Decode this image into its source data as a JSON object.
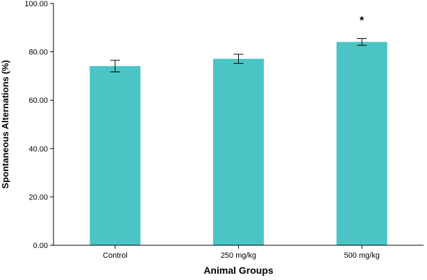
{
  "chart_data": {
    "type": "bar",
    "categories": [
      "Control",
      "250 mg/kg",
      "500 mg/kg"
    ],
    "series": [
      {
        "values": [
          74.1,
          77.1,
          84.1
        ],
        "error": [
          2.4,
          1.9,
          1.4
        ],
        "annotations": [
          "",
          "",
          "*"
        ]
      }
    ],
    "xlabel": "Animal Groups",
    "ylabel": "Spontaneous Alternations (%)",
    "ylim": [
      0,
      100
    ],
    "yticks": [
      "0.00",
      "20.00",
      "40.00",
      "60.00",
      "80.00",
      "100.00"
    ],
    "grid": false,
    "legend": "none",
    "colors": {
      "bar": "#4ac4c4",
      "axis": "#000000",
      "error_bar": "#000000"
    }
  }
}
